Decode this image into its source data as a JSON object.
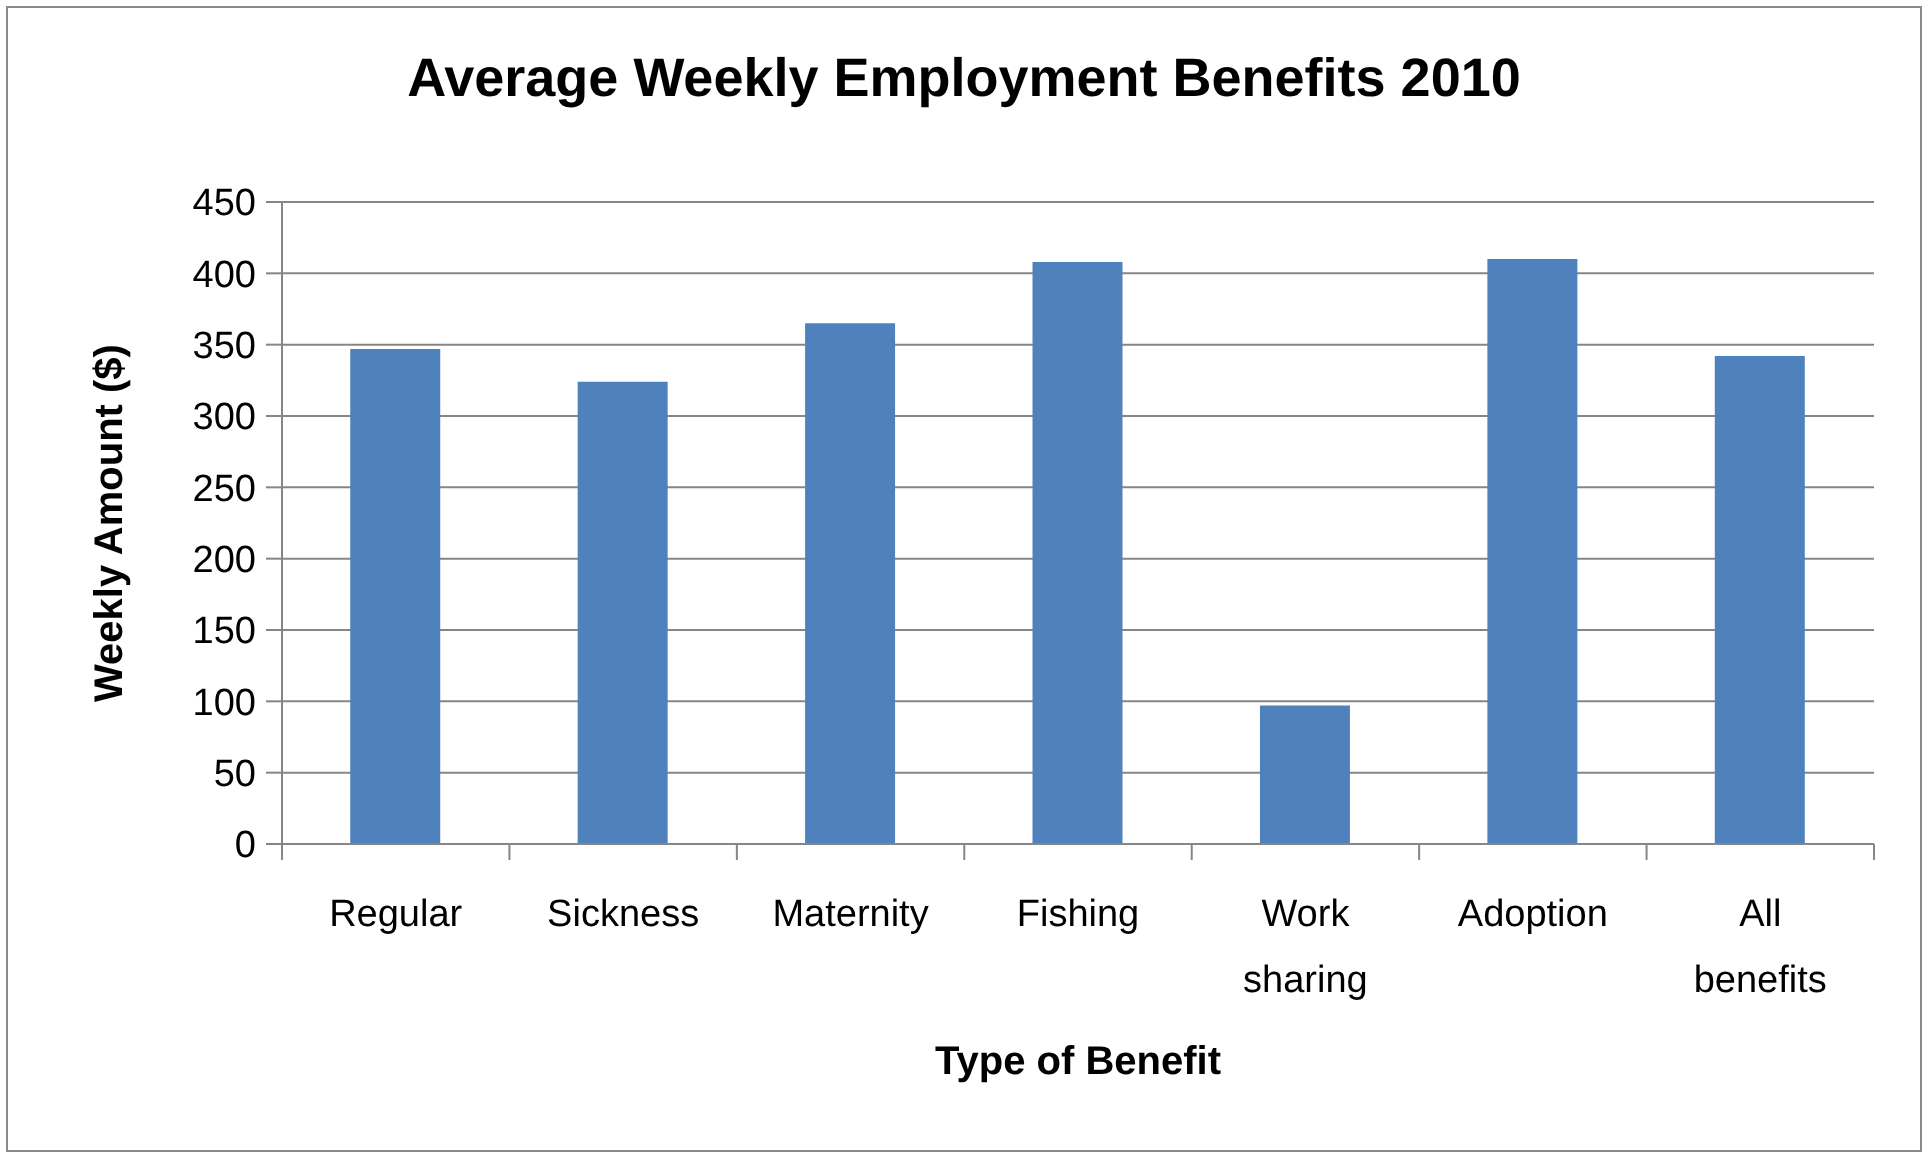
{
  "chart_data": {
    "type": "bar",
    "title": "Average Weekly Employment Benefits 2010",
    "xlabel": "Type of Benefit",
    "ylabel": "Weekly Amount ($)",
    "categories": [
      "Regular",
      "Sickness",
      "Maternity",
      "Fishing",
      "Work sharing",
      "Adoption",
      "All benefits"
    ],
    "values": [
      347,
      324,
      365,
      408,
      97,
      410,
      342
    ],
    "color": "#4f81bd",
    "ylim": [
      0,
      450
    ],
    "yticks": [
      0,
      50,
      100,
      150,
      200,
      250,
      300,
      350,
      400,
      450
    ],
    "grid": "y"
  }
}
